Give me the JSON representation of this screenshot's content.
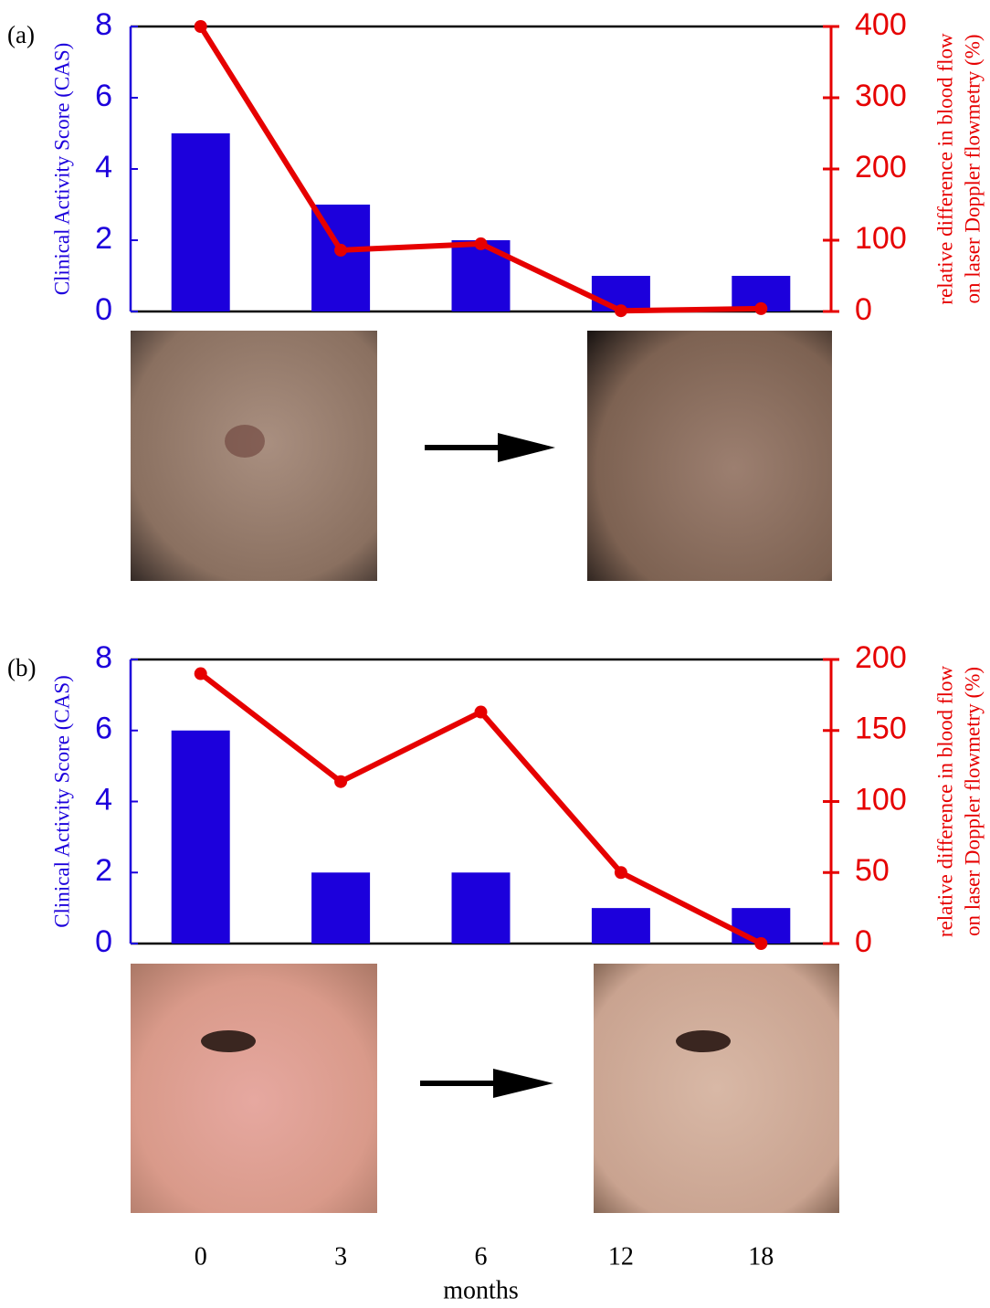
{
  "chart_data": [
    {
      "type": "bar",
      "label": "(a)",
      "ylabel": "Clinical Activity Score (CAS)",
      "y2label": [
        "relative difference in blood flow",
        "on laser Doppler flowmetry (%)"
      ],
      "categories": [
        null,
        null,
        null,
        null,
        null
      ],
      "series": [
        {
          "type": "bar",
          "color": "#1c00dc",
          "values": [
            5,
            3,
            2,
            1,
            1
          ]
        },
        {
          "type": "line",
          "color": "#e60000",
          "axis": "y2",
          "values": [
            400,
            86,
            95,
            1,
            4
          ]
        }
      ],
      "ylim": [
        0,
        8
      ],
      "yticks": [
        0,
        2,
        4,
        6,
        8
      ],
      "y2lim": [
        0,
        400
      ],
      "y2ticks": [
        0,
        100,
        200,
        300,
        400
      ]
    },
    {
      "type": "bar",
      "label": "(b)",
      "ylabel": "Clinical Activity Score (CAS)",
      "y2label": [
        "relative difference in blood flow",
        "on laser Doppler flowmetry (%)"
      ],
      "categories": [
        "0",
        "3",
        "6",
        "12",
        "18"
      ],
      "xlabel": "months",
      "series": [
        {
          "type": "bar",
          "color": "#1c00dc",
          "values": [
            6,
            2,
            2,
            1,
            1
          ]
        },
        {
          "type": "line",
          "color": "#e60000",
          "axis": "y2",
          "values": [
            190,
            114,
            163,
            50,
            0
          ]
        }
      ],
      "ylim": [
        0,
        8
      ],
      "yticks": [
        0,
        2,
        4,
        6,
        8
      ],
      "y2lim": [
        0,
        200
      ],
      "y2ticks": [
        0,
        50,
        100,
        150,
        200
      ]
    }
  ]
}
